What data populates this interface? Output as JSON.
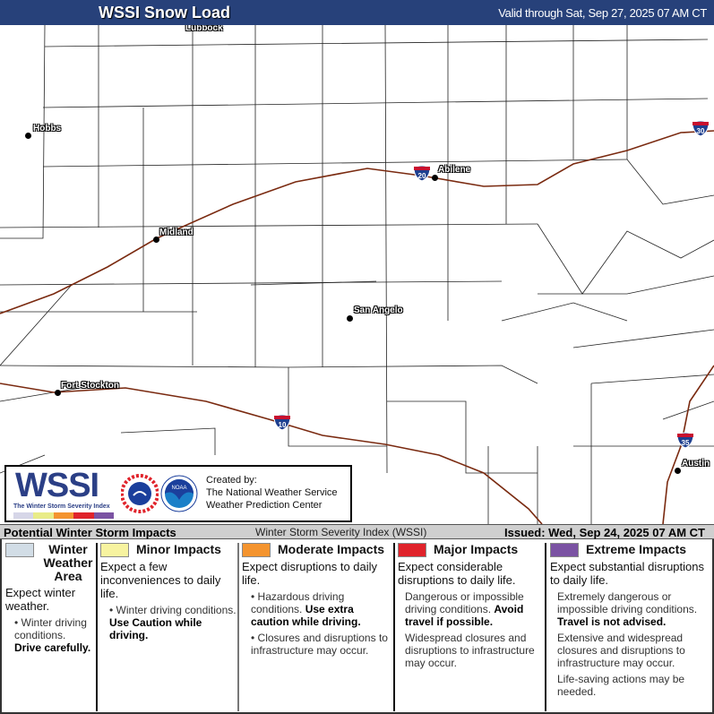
{
  "header": {
    "title": "WSSI Snow Load",
    "valid": "Valid through Sat, Sep 27, 2025 07 AM CT"
  },
  "map": {
    "cities": [
      {
        "name": "Lubbock"
      },
      {
        "name": "Hobbs"
      },
      {
        "name": "Abilene"
      },
      {
        "name": "Midland"
      },
      {
        "name": "San Angelo"
      },
      {
        "name": "Fort Stockton"
      },
      {
        "name": "Austin"
      }
    ],
    "interstates": [
      "30",
      "20",
      "10",
      "35"
    ],
    "road_color": "#7a2a10"
  },
  "logo": {
    "wssi": "WSSI",
    "wssi_sub": "The Winter Storm Severity Index",
    "created_by": "Created by:",
    "org1": "The National Weather Service",
    "org2": "Weather Prediction Center",
    "nws_text": "NATIONAL WEATHER SERVICE",
    "noaa_text": "NOAA"
  },
  "footer": {
    "left": "Potential Winter Storm Impacts",
    "center": "Winter Storm Severity Index (WSSI)",
    "issued": "Issued: Wed, Sep 24, 2025 07 AM CT"
  },
  "legend": [
    {
      "label": "Winter Weather Area",
      "color": "#d2dde6",
      "summary": "Expect winter weather.",
      "bullets": [
        {
          "text": "Winter driving conditions. ",
          "bold": "Drive carefully."
        }
      ]
    },
    {
      "label": "Minor Impacts",
      "color": "#f7f3a0",
      "summary": "Expect a few inconveniences to daily life.",
      "bullets": [
        {
          "text": "Winter driving conditions. ",
          "bold": "Use Caution while driving."
        }
      ]
    },
    {
      "label": "Moderate Impacts",
      "color": "#f4942f",
      "summary": "Expect disruptions to daily life.",
      "bullets": [
        {
          "text": "Hazardous driving conditions. ",
          "bold": "Use extra caution while driving."
        },
        {
          "text": "Closures and disruptions to infrastructure may occur.",
          "bold": ""
        }
      ]
    },
    {
      "label": "Major Impacts",
      "color": "#e0232b",
      "summary": "Expect considerable disruptions to daily life.",
      "bullets": [
        {
          "text": "Dangerous or impossible driving conditions. ",
          "bold": "Avoid travel if possible."
        },
        {
          "text": "Widespread closures and disruptions to infrastructure may occur.",
          "bold": ""
        }
      ]
    },
    {
      "label": "Extreme Impacts",
      "color": "#7b53a3",
      "summary": "Expect substantial disruptions to daily life.",
      "bullets": [
        {
          "text": "Extremely dangerous or impossible driving conditions. ",
          "bold": "Travel is not advised."
        },
        {
          "text": "Extensive and widespread closures and disruptions to infrastructure may occur.",
          "bold": ""
        },
        {
          "text": "Life-saving actions may be needed.",
          "bold": ""
        }
      ]
    }
  ]
}
